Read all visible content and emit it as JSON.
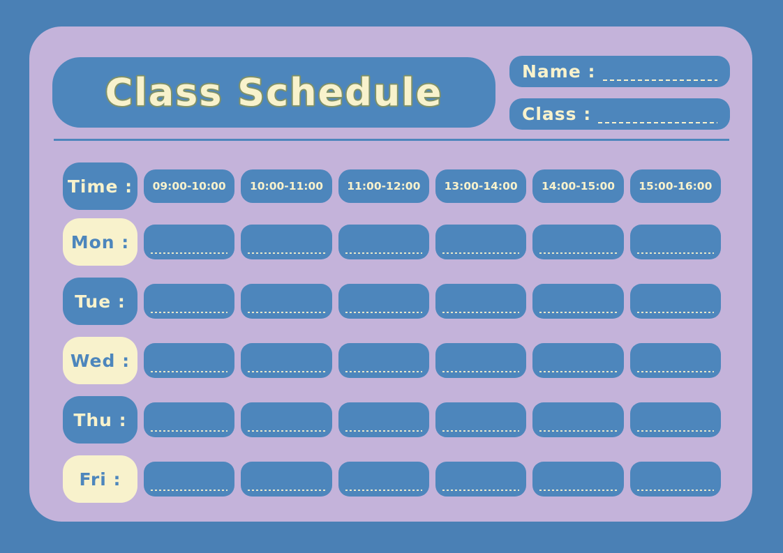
{
  "colors": {
    "background": "#4A80B5",
    "panel": "#C4B3DA",
    "accent_blue": "#4D86BC",
    "cream": "#F8F2CC",
    "title_outline": "#7F9169"
  },
  "title": "Class Schedule",
  "fields": {
    "name_label": "Name :",
    "name_value": "",
    "class_label": "Class :",
    "class_value": ""
  },
  "table": {
    "time_label": "Time :",
    "time_slots": [
      "09:00-10:00",
      "10:00-11:00",
      "11:00-12:00",
      "13:00-14:00",
      "14:00-15:00",
      "15:00-16:00"
    ],
    "day_labels": [
      "Mon :",
      "Tue :",
      "Wed :",
      "Thu :",
      "Fri :"
    ],
    "cell_values": [
      [
        "",
        "",
        "",
        "",
        "",
        ""
      ],
      [
        "",
        "",
        "",
        "",
        "",
        ""
      ],
      [
        "",
        "",
        "",
        "",
        "",
        ""
      ],
      [
        "",
        "",
        "",
        "",
        "",
        ""
      ],
      [
        "",
        "",
        "",
        "",
        "",
        ""
      ]
    ]
  }
}
